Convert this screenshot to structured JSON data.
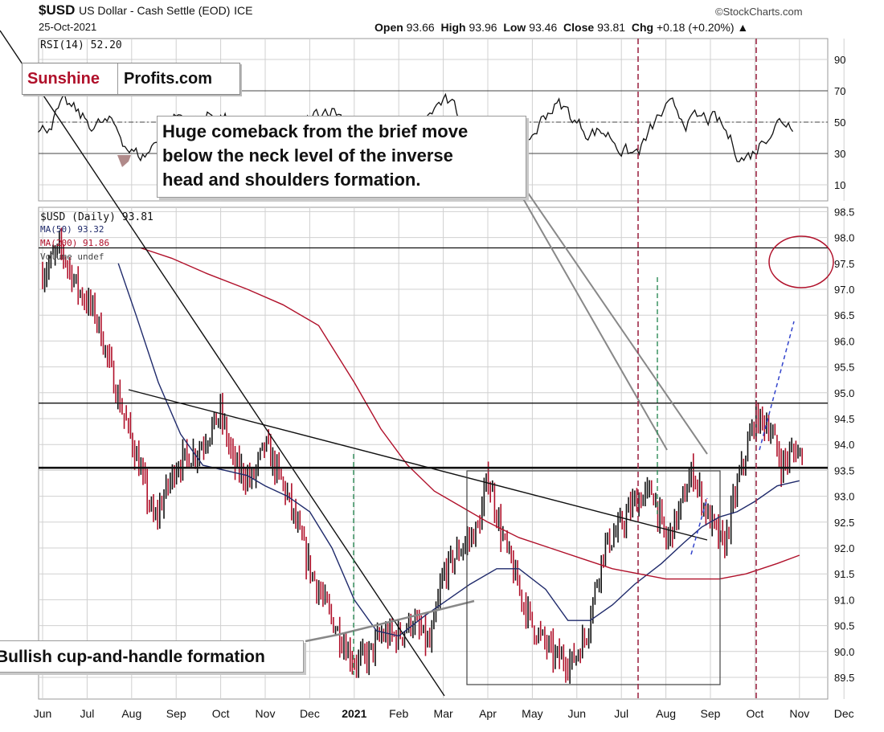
{
  "header": {
    "symbol": "$USD",
    "name": "US Dollar - Cash Settle (EOD)",
    "exchange": "ICE",
    "date": "25-Oct-2021",
    "source": "©StockCharts.com",
    "open_label": "Open",
    "open": "93.66",
    "high_label": "High",
    "high": "93.96",
    "low_label": "Low",
    "low": "93.46",
    "close_label": "Close",
    "close": "93.81",
    "chg_label": "Chg",
    "chg": "+0.18 (+0.20%)",
    "chg_arrow": "▲"
  },
  "logo": {
    "part1": "Sunshine",
    "part2": "Profits.com",
    "part1_color": "#b0102a"
  },
  "colors": {
    "price": "#111111",
    "price_down": "#b0102a",
    "ma50": "#1f2a6b",
    "ma200": "#b0102a",
    "grid": "#d0d0d0",
    "rsi_fill": "#b08a8a",
    "green_dash": "#2e8b57",
    "red_dash": "#9e2a47",
    "blue_dash": "#3344cc"
  },
  "annotations": {
    "top": "Huge comeback from the brief move below the neck level of the inverse head and shoulders formation.",
    "top_lines": [
      "Huge comeback from the brief move",
      "below the neck level of the inverse",
      "head and shoulders formation."
    ],
    "bottom": "Bullish cup-and-handle formation"
  },
  "chart_data": [
    {
      "type": "line",
      "title": "RSI(14) 52.20",
      "series": [
        {
          "name": "RSI(14)",
          "last": 52.2
        }
      ],
      "y_ticks": [
        90,
        70,
        50,
        30,
        10
      ],
      "ylim": [
        0,
        100
      ],
      "reference_lines": [
        70,
        50,
        30
      ]
    },
    {
      "type": "line",
      "title": "$USD (Daily) 93.81",
      "legend": [
        "$USD (Daily) 93.81",
        "MA(50) 93.32",
        "MA(200) 91.86",
        "Volume undef"
      ],
      "x_ticks": [
        "Jun",
        "Jul",
        "Aug",
        "Sep",
        "Oct",
        "Nov",
        "Dec",
        "2021",
        "Feb",
        "Mar",
        "Apr",
        "May",
        "Jun",
        "Jul",
        "Aug",
        "Sep",
        "Oct",
        "Nov",
        "Dec"
      ],
      "y_ticks": [
        "98.5",
        "98.0",
        "97.5",
        "97.0",
        "96.5",
        "96.0",
        "95.5",
        "95.0",
        "94.5",
        "94.0",
        "93.5",
        "93.0",
        "92.5",
        "92.0",
        "91.5",
        "91.0",
        "90.5",
        "90.0",
        "89.5"
      ],
      "ylim": [
        89.2,
        98.7
      ],
      "x_range_months": [
        0,
        19
      ],
      "series": [
        {
          "name": "$USD (Daily)",
          "last": 93.81,
          "x": [
            0,
            0.4,
            0.8,
            1.2,
            1.7,
            2.1,
            2.5,
            3.0,
            3.5,
            4.0,
            4.3,
            4.7,
            5.0,
            5.5,
            6.0,
            6.5,
            7.0,
            7.3,
            7.6,
            8.0,
            8.3,
            8.7,
            9.0,
            9.4,
            9.8,
            10.0,
            10.3,
            10.7,
            11.0,
            11.5,
            11.9,
            12.2,
            12.6,
            12.9,
            13.3,
            13.7,
            14.0,
            14.3,
            14.6,
            14.9,
            15.3,
            15.6,
            16.0,
            16.3,
            16.6,
            16.9,
            17.1
          ],
          "values": [
            97.3,
            97.8,
            97.0,
            96.5,
            94.9,
            93.8,
            92.5,
            93.6,
            93.9,
            94.6,
            93.6,
            93.3,
            94.0,
            93.0,
            91.6,
            90.6,
            89.8,
            89.9,
            90.3,
            90.3,
            90.6,
            90.1,
            91.5,
            92.0,
            92.4,
            93.4,
            92.3,
            91.2,
            90.5,
            89.9,
            89.8,
            90.3,
            92.0,
            92.3,
            92.9,
            93.1,
            92.1,
            92.7,
            93.5,
            92.7,
            92.0,
            93.2,
            94.5,
            94.4,
            93.6,
            93.9,
            93.81
          ]
        },
        {
          "name": "MA(50)",
          "last": 93.32,
          "x": [
            1.7,
            2.1,
            2.6,
            3.1,
            3.6,
            4.1,
            4.6,
            5.0,
            5.5,
            6.0,
            6.5,
            7.0,
            7.5,
            8.0,
            8.6,
            9.1,
            9.6,
            10.2,
            10.7,
            11.3,
            11.8,
            12.3,
            12.8,
            13.3,
            13.9,
            14.4,
            14.8,
            15.2,
            15.6,
            16.0,
            16.5,
            17.0
          ],
          "values": [
            97.5,
            96.5,
            95.2,
            94.2,
            93.6,
            93.5,
            93.4,
            93.2,
            93.0,
            92.7,
            92.0,
            91.0,
            90.4,
            90.3,
            90.7,
            91.0,
            91.3,
            91.6,
            91.6,
            91.2,
            90.6,
            90.6,
            90.9,
            91.3,
            91.7,
            92.1,
            92.4,
            92.6,
            92.7,
            92.9,
            93.2,
            93.3
          ]
        },
        {
          "name": "MA(200)",
          "last": 91.86,
          "x": [
            2.2,
            2.9,
            3.7,
            4.6,
            5.4,
            6.2,
            7.0,
            7.6,
            8.2,
            8.8,
            9.4,
            10.0,
            10.7,
            11.4,
            12.1,
            12.8,
            13.4,
            14.0,
            14.6,
            15.2,
            15.8,
            16.5,
            17.0
          ],
          "values": [
            97.8,
            97.6,
            97.3,
            97.0,
            96.7,
            96.3,
            95.2,
            94.3,
            93.6,
            93.1,
            92.8,
            92.5,
            92.2,
            92.0,
            91.8,
            91.6,
            91.5,
            91.4,
            91.4,
            91.4,
            91.5,
            91.7,
            91.86
          ]
        }
      ],
      "horizontal_levels": [
        97.8,
        94.8,
        93.55
      ]
    }
  ]
}
